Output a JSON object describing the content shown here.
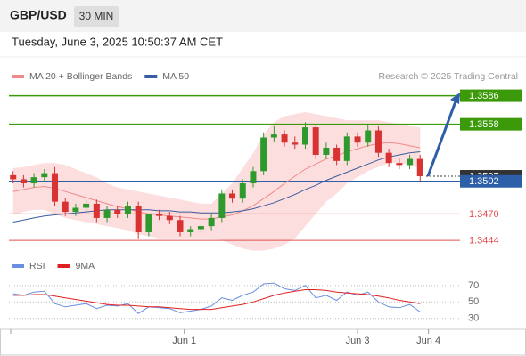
{
  "header": {
    "title": "GBP/USD",
    "interval": "30 MIN",
    "timestamp": "Tuesday, June 3, 2025 10:50:37 AM CET"
  },
  "chart_data": [
    {
      "type": "candlestick",
      "attribution": "Research © 2025 Trading Central",
      "xlim": [
        -0.4,
        40.6
      ],
      "ylim": [
        1.3431,
        1.3597
      ],
      "up_color": "#2e9a2e",
      "down_color": "#d83232",
      "candles": {
        "open": [
          1.3508,
          1.3504,
          1.35,
          1.3506,
          1.351,
          1.3482,
          1.3472,
          1.3476,
          1.348,
          1.3466,
          1.3474,
          1.347,
          1.3478,
          1.3452,
          1.347,
          1.3468,
          1.3464,
          1.3452,
          1.3455,
          1.3458,
          1.3466,
          1.349,
          1.3485,
          1.35,
          1.3512,
          1.3545,
          1.3548,
          1.354,
          1.3538,
          1.3555,
          1.3528,
          1.3535,
          1.3522,
          1.3546,
          1.354,
          1.3552,
          1.353,
          1.352,
          1.3518,
          1.3524
        ],
        "high": [
          1.3512,
          1.3508,
          1.351,
          1.3514,
          1.3516,
          1.3486,
          1.348,
          1.3484,
          1.3484,
          1.3478,
          1.3478,
          1.3482,
          1.3482,
          1.3456,
          1.3474,
          1.3472,
          1.3468,
          1.3458,
          1.346,
          1.347,
          1.3494,
          1.3494,
          1.3504,
          1.3516,
          1.355,
          1.3556,
          1.3552,
          1.3546,
          1.356,
          1.3558,
          1.354,
          1.3538,
          1.355,
          1.355,
          1.3558,
          1.3556,
          1.3534,
          1.3524,
          1.3528,
          1.3528
        ],
        "low": [
          1.35,
          1.3496,
          1.3496,
          1.3502,
          1.3478,
          1.3468,
          1.3468,
          1.3472,
          1.3462,
          1.3462,
          1.3466,
          1.3466,
          1.3446,
          1.3448,
          1.3464,
          1.346,
          1.3448,
          1.3448,
          1.3451,
          1.3454,
          1.3462,
          1.3481,
          1.3481,
          1.3496,
          1.3508,
          1.3541,
          1.3536,
          1.3534,
          1.3534,
          1.3524,
          1.3524,
          1.3518,
          1.3518,
          1.3536,
          1.3536,
          1.3526,
          1.3516,
          1.3514,
          1.3514,
          1.3502
        ],
        "close": [
          1.3504,
          1.35,
          1.3506,
          1.351,
          1.3482,
          1.3472,
          1.3476,
          1.348,
          1.3466,
          1.3474,
          1.347,
          1.3478,
          1.3452,
          1.347,
          1.3468,
          1.3464,
          1.3452,
          1.3455,
          1.3458,
          1.3466,
          1.349,
          1.3485,
          1.35,
          1.3512,
          1.3545,
          1.3548,
          1.354,
          1.3538,
          1.3555,
          1.3528,
          1.3535,
          1.3522,
          1.3546,
          1.354,
          1.3552,
          1.353,
          1.352,
          1.3518,
          1.3524,
          1.3507
        ]
      },
      "band": {
        "color": "#fbd3d3",
        "upper": [
          1.3515,
          1.3516,
          1.3518,
          1.352,
          1.352,
          1.3518,
          1.3514,
          1.351,
          1.3506,
          1.35,
          1.3496,
          1.3494,
          1.3492,
          1.349,
          1.3488,
          1.3486,
          1.3484,
          1.3482,
          1.348,
          1.348,
          1.349,
          1.35,
          1.3515,
          1.353,
          1.3548,
          1.356,
          1.3566,
          1.3568,
          1.357,
          1.3568,
          1.3566,
          1.3564,
          1.3562,
          1.3562,
          1.3562,
          1.3562,
          1.356,
          1.3558,
          1.3556,
          1.3555
        ],
        "lower": [
          1.3469,
          1.3472,
          1.3474,
          1.3474,
          1.347,
          1.3466,
          1.3464,
          1.3462,
          1.346,
          1.3458,
          1.3456,
          1.3454,
          1.345,
          1.3448,
          1.3446,
          1.3446,
          1.3446,
          1.3446,
          1.3446,
          1.3446,
          1.3444,
          1.344,
          1.3436,
          1.3434,
          1.3434,
          1.3436,
          1.344,
          1.3446,
          1.3458,
          1.347,
          1.3482,
          1.349,
          1.35,
          1.3506,
          1.3512,
          1.3516,
          1.352,
          1.352,
          1.3518,
          1.3515
        ]
      },
      "series": [
        {
          "name": "MA 20 + Bollinger Bands",
          "color": "#f08a8a",
          "values": [
            1.3492,
            1.3494,
            1.3496,
            1.3497,
            1.3495,
            1.3492,
            1.3489,
            1.3486,
            1.3483,
            1.348,
            1.3477,
            1.3475,
            1.3472,
            1.347,
            1.3469,
            1.3468,
            1.3467,
            1.3466,
            1.3465,
            1.3465,
            1.3467,
            1.3469,
            1.3473,
            1.3478,
            1.3485,
            1.3492,
            1.35,
            1.3507,
            1.3514,
            1.3519,
            1.3524,
            1.3527,
            1.3531,
            1.3534,
            1.3537,
            1.3539,
            1.354,
            1.3539,
            1.3537,
            1.3535
          ]
        },
        {
          "name": "MA 50",
          "color": "#3a5ca0",
          "values": [
            1.3462,
            1.3464,
            1.3466,
            1.3468,
            1.3469,
            1.347,
            1.3471,
            1.3472,
            1.3473,
            1.3474,
            1.3474,
            1.3474,
            1.3474,
            1.3474,
            1.3473,
            1.3473,
            1.3472,
            1.3472,
            1.3471,
            1.3471,
            1.3471,
            1.3472,
            1.3473,
            1.3475,
            1.3478,
            1.3481,
            1.3485,
            1.3489,
            1.3494,
            1.3498,
            1.3503,
            1.3507,
            1.3511,
            1.3515,
            1.3519,
            1.3523,
            1.3526,
            1.3528,
            1.353,
            1.3531
          ]
        }
      ],
      "levels": [
        {
          "value": 1.3586,
          "label": "1.3586",
          "color": "#3c9a0a",
          "box": true
        },
        {
          "value": 1.3558,
          "label": "1.3558",
          "color": "#3c9a0a",
          "box": true
        },
        {
          "value": 1.3507,
          "label": "1.3507",
          "color": "#333333",
          "box": true,
          "dotted": true
        },
        {
          "value": 1.3502,
          "label": "1.3502",
          "color": "#2d5ea8",
          "box": true
        },
        {
          "value": 1.347,
          "label": "1.3470",
          "color": "#e05050",
          "box": false
        },
        {
          "value": 1.3444,
          "label": "1.3444",
          "color": "#e05050",
          "box": false
        }
      ]
    },
    {
      "type": "line",
      "xlim": [
        -0.4,
        40.6
      ],
      "ylim": [
        20,
        85
      ],
      "yticks": [
        30,
        50,
        70
      ],
      "xticks": [
        {
          "value": 16.4,
          "label": "Jun 1"
        },
        {
          "value": 33,
          "label": "Jun 3"
        },
        {
          "value": 39.8,
          "label": "Jun 4"
        }
      ],
      "series": [
        {
          "name": "RSI",
          "color": "#6a8ee0",
          "values": [
            60,
            58,
            62,
            63,
            48,
            44,
            46,
            48,
            42,
            46,
            45,
            48,
            36,
            44,
            43,
            42,
            37,
            39,
            41,
            45,
            55,
            52,
            58,
            62,
            72,
            73,
            66,
            64,
            70,
            55,
            58,
            52,
            62,
            58,
            62,
            50,
            44,
            43,
            47,
            38
          ]
        },
        {
          "name": "9MA",
          "color": "#e02020",
          "values": [
            58,
            58,
            59,
            59,
            57,
            55,
            53,
            51,
            49,
            47,
            46,
            46,
            45,
            44,
            44,
            43,
            42,
            41,
            41,
            41,
            43,
            45,
            47,
            50,
            54,
            58,
            61,
            63,
            65,
            65,
            64,
            62,
            61,
            60,
            59,
            57,
            55,
            52,
            50,
            48
          ]
        }
      ]
    }
  ]
}
